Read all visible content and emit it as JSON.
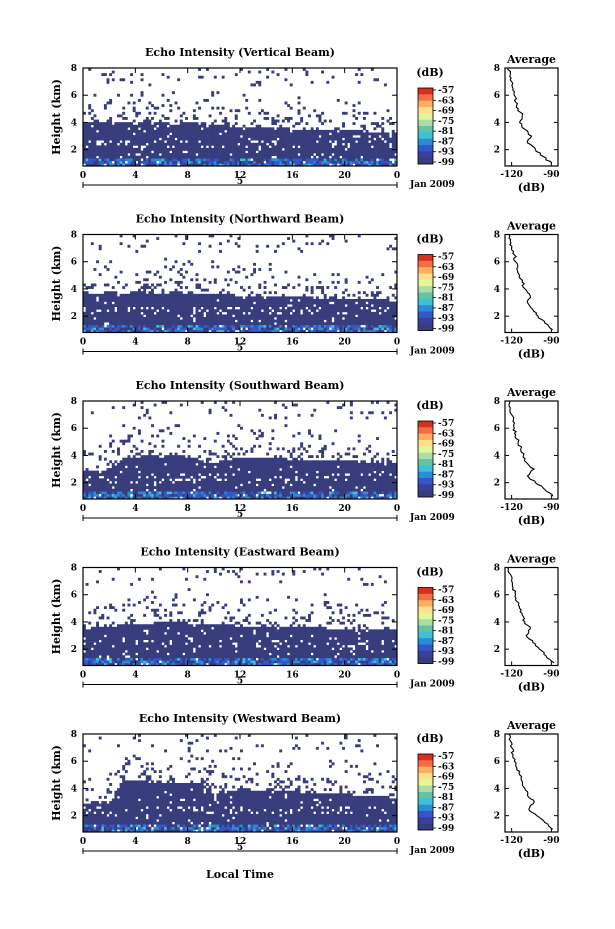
{
  "figure": {
    "x_label": "Local Time",
    "date_label": "Jan 2009",
    "y_label": "Height (km)",
    "colorbar_label": "(dB)",
    "avg_title": "Average",
    "avg_xlabel": "(dB)"
  },
  "chart_data": [
    {
      "type": "heatmap",
      "title": "Echo Intensity (Vertical Beam)",
      "xlabel": "Local Time",
      "ylabel": "Height (km)",
      "xlim": [
        0,
        24
      ],
      "ylim": [
        0.8,
        8
      ],
      "x_ticks": [
        "0",
        "4",
        "8",
        "12",
        "16",
        "20",
        "0"
      ],
      "date_tick": "5",
      "y_ticks": [
        "2",
        "4",
        "6",
        "8"
      ],
      "colorbar": {
        "label": "(dB)",
        "ticks": [
          "-57",
          "-63",
          "-69",
          "-75",
          "-81",
          "-87",
          "-93",
          "-99"
        ],
        "range": [
          -99,
          -57
        ]
      },
      "echo_top_km": [
        3.9,
        3.9,
        3.8,
        3.9,
        3.8,
        3.9,
        3.9,
        3.8,
        3.9,
        3.8,
        3.8,
        3.7,
        3.6,
        3.5,
        3.5,
        3.5,
        3.4,
        3.4,
        3.4,
        3.3,
        3.3,
        3.3,
        3.2,
        3.2,
        3.1
      ],
      "average_profile": {
        "title": "Average",
        "xlabel": "(dB)",
        "x_ticks": [
          "-120",
          "-90"
        ],
        "xlim": [
          -125,
          -85
        ],
        "height_km": [
          8.0,
          7.5,
          7.0,
          6.5,
          6.0,
          5.5,
          5.0,
          4.5,
          4.0,
          3.5,
          3.0,
          2.5,
          2.0,
          1.5,
          1.0
        ],
        "db": [
          -123,
          -121,
          -120,
          -119,
          -118,
          -117,
          -115,
          -112,
          -114,
          -110,
          -105,
          -108,
          -102,
          -96,
          -90
        ]
      }
    },
    {
      "type": "heatmap",
      "title": "Echo Intensity (Northward Beam)",
      "xlabel": "Local Time",
      "ylabel": "Height (km)",
      "xlim": [
        0,
        24
      ],
      "ylim": [
        0.8,
        8
      ],
      "x_ticks": [
        "0",
        "4",
        "8",
        "12",
        "16",
        "20",
        "0"
      ],
      "date_tick": "5",
      "y_ticks": [
        "2",
        "4",
        "6",
        "8"
      ],
      "colorbar": {
        "label": "(dB)",
        "ticks": [
          "-57",
          "-63",
          "-69",
          "-75",
          "-81",
          "-87",
          "-93",
          "-99"
        ],
        "range": [
          -99,
          -57
        ]
      },
      "echo_top_km": [
        3.6,
        3.6,
        3.7,
        3.6,
        3.7,
        3.6,
        3.6,
        3.7,
        3.6,
        3.6,
        3.5,
        3.5,
        3.4,
        3.4,
        3.3,
        3.4,
        3.3,
        3.3,
        3.2,
        3.3,
        3.2,
        3.2,
        3.1,
        3.1,
        3.0
      ],
      "average_profile": {
        "title": "Average",
        "xlabel": "(dB)",
        "x_ticks": [
          "-120",
          "-90"
        ],
        "xlim": [
          -125,
          -85
        ],
        "height_km": [
          8.0,
          7.5,
          7.0,
          6.5,
          6.0,
          5.5,
          5.0,
          4.5,
          4.0,
          3.5,
          3.0,
          2.5,
          2.0,
          1.5,
          1.0
        ],
        "db": [
          -122,
          -121,
          -120,
          -118,
          -117,
          -116,
          -114,
          -112,
          -110,
          -106,
          -108,
          -104,
          -100,
          -95,
          -89
        ]
      }
    },
    {
      "type": "heatmap",
      "title": "Echo Intensity (Southward Beam)",
      "xlabel": "Local Time",
      "ylabel": "Height (km)",
      "xlim": [
        0,
        24
      ],
      "ylim": [
        0.8,
        8
      ],
      "x_ticks": [
        "0",
        "4",
        "8",
        "12",
        "16",
        "20",
        "0"
      ],
      "date_tick": "5",
      "y_ticks": [
        "2",
        "4",
        "6",
        "8"
      ],
      "colorbar": {
        "label": "(dB)",
        "ticks": [
          "-57",
          "-63",
          "-69",
          "-75",
          "-81",
          "-87",
          "-93",
          "-99"
        ],
        "range": [
          -99,
          -57
        ]
      },
      "echo_top_km": [
        2.8,
        2.8,
        2.9,
        3.8,
        3.8,
        3.9,
        3.8,
        3.9,
        3.8,
        3.6,
        3.3,
        3.8,
        3.8,
        3.8,
        3.7,
        3.7,
        3.6,
        3.6,
        3.6,
        3.5,
        3.5,
        3.5,
        3.4,
        3.4,
        3.3
      ],
      "average_profile": {
        "title": "Average",
        "xlabel": "(dB)",
        "x_ticks": [
          "-120",
          "-90"
        ],
        "xlim": [
          -125,
          -85
        ],
        "height_km": [
          8.0,
          7.5,
          7.0,
          6.5,
          6.0,
          5.5,
          5.0,
          4.5,
          4.0,
          3.5,
          3.0,
          2.5,
          2.0,
          1.5,
          1.0
        ],
        "db": [
          -122,
          -121,
          -120,
          -119,
          -118,
          -117,
          -115,
          -113,
          -111,
          -109,
          -103,
          -108,
          -102,
          -95,
          -89
        ]
      }
    },
    {
      "type": "heatmap",
      "title": "Echo Intensity (Eastward Beam)",
      "xlabel": "Local Time",
      "ylabel": "Height (km)",
      "xlim": [
        0,
        24
      ],
      "ylim": [
        0.8,
        8
      ],
      "x_ticks": [
        "0",
        "4",
        "8",
        "12",
        "16",
        "20",
        "0"
      ],
      "date_tick": "5",
      "y_ticks": [
        "2",
        "4",
        "6",
        "8"
      ],
      "colorbar": {
        "label": "(dB)",
        "ticks": [
          "-57",
          "-63",
          "-69",
          "-75",
          "-81",
          "-87",
          "-93",
          "-99"
        ],
        "range": [
          -99,
          -57
        ]
      },
      "echo_top_km": [
        3.4,
        3.5,
        3.6,
        3.7,
        3.8,
        3.8,
        3.9,
        3.9,
        3.8,
        3.8,
        3.7,
        3.7,
        3.6,
        3.6,
        3.6,
        3.5,
        3.5,
        3.5,
        3.5,
        3.4,
        3.4,
        3.4,
        3.4,
        3.3,
        3.3
      ],
      "average_profile": {
        "title": "Average",
        "xlabel": "(dB)",
        "x_ticks": [
          "-120",
          "-90"
        ],
        "xlim": [
          -125,
          -85
        ],
        "height_km": [
          8.0,
          7.5,
          7.0,
          6.5,
          6.0,
          5.5,
          5.0,
          4.5,
          4.0,
          3.5,
          3.0,
          2.5,
          2.0,
          1.5,
          1.0
        ],
        "db": [
          -123,
          -121,
          -120,
          -119,
          -117,
          -116,
          -114,
          -112,
          -110,
          -106,
          -109,
          -104,
          -99,
          -94,
          -88
        ]
      }
    },
    {
      "type": "heatmap",
      "title": "Echo Intensity (Westward Beam)",
      "xlabel": "Local Time",
      "ylabel": "Height (km)",
      "xlim": [
        0,
        24
      ],
      "ylim": [
        0.8,
        8
      ],
      "x_ticks": [
        "0",
        "4",
        "8",
        "12",
        "16",
        "20",
        "0"
      ],
      "date_tick": "5",
      "y_ticks": [
        "2",
        "4",
        "6",
        "8"
      ],
      "colorbar": {
        "label": "(dB)",
        "ticks": [
          "-57",
          "-63",
          "-69",
          "-75",
          "-81",
          "-87",
          "-93",
          "-99"
        ],
        "range": [
          -99,
          -57
        ]
      },
      "echo_top_km": [
        2.8,
        2.8,
        2.9,
        4.5,
        4.4,
        4.5,
        4.4,
        4.4,
        4.3,
        4.3,
        3.4,
        3.7,
        3.9,
        3.8,
        3.8,
        3.7,
        3.7,
        3.6,
        3.6,
        3.5,
        3.5,
        3.4,
        3.4,
        3.3,
        3.2
      ],
      "average_profile": {
        "title": "Average",
        "xlabel": "(dB)",
        "x_ticks": [
          "-120",
          "-90"
        ],
        "xlim": [
          -125,
          -85
        ],
        "height_km": [
          8.0,
          7.5,
          7.0,
          6.5,
          6.0,
          5.5,
          5.0,
          4.5,
          4.0,
          3.5,
          3.0,
          2.5,
          2.0,
          1.5,
          1.0
        ],
        "db": [
          -122,
          -121,
          -120,
          -119,
          -118,
          -116,
          -114,
          -112,
          -110,
          -108,
          -103,
          -107,
          -101,
          -95,
          -89
        ]
      }
    }
  ]
}
